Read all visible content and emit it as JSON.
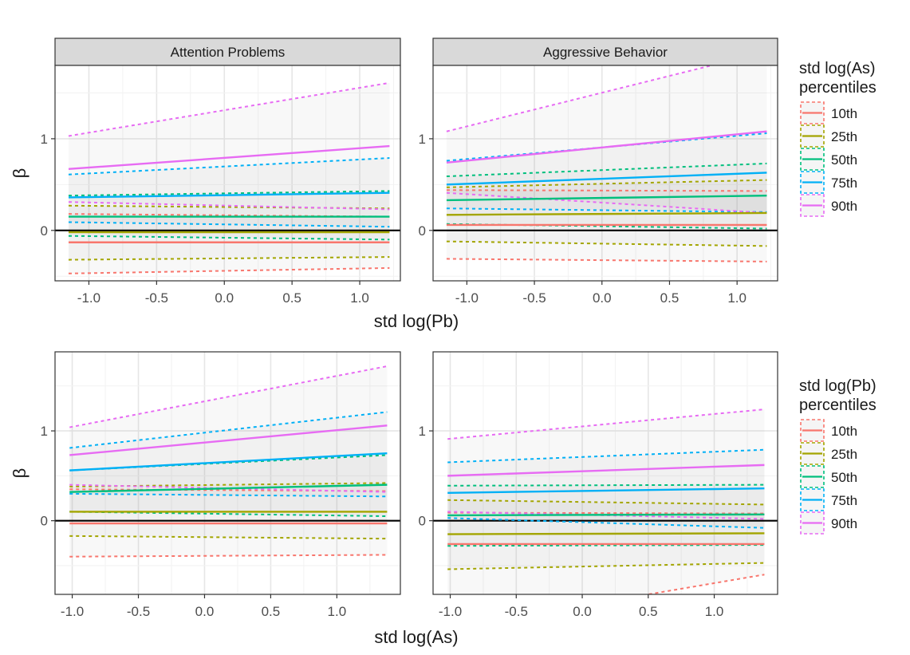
{
  "chart_data": [
    {
      "type": "line",
      "xlabel": "std log(Pb)",
      "ylabel": "β",
      "legend": {
        "title": "std log(As)\npercentiles",
        "position": "right"
      },
      "xlim": [
        -1.25,
        1.3
      ],
      "ylim": [
        -0.55,
        1.8
      ],
      "xticks": [
        -1.0,
        -0.5,
        0.0,
        0.5,
        1.0
      ],
      "xtick_labels": [
        "-1.0",
        "-0.5",
        "0.0",
        "0.5",
        "1.0"
      ],
      "yticks": [
        0,
        1
      ],
      "ytick_labels": [
        "0",
        "1"
      ],
      "grid": true,
      "panels": [
        {
          "strip": "Attention Problems",
          "series": [
            {
              "name": "10th",
              "color": "#F8766D",
              "x": [
                -1.15,
                1.22
              ],
              "est": [
                -0.13,
                -0.13
              ],
              "lo": [
                -0.47,
                -0.41
              ],
              "hi": [
                0.18,
                0.15
              ]
            },
            {
              "name": "25th",
              "color": "#A3A500",
              "x": [
                -1.15,
                1.22
              ],
              "est": [
                -0.02,
                -0.02
              ],
              "lo": [
                -0.32,
                -0.29
              ],
              "hi": [
                0.27,
                0.24
              ]
            },
            {
              "name": "50th",
              "color": "#00BF7D",
              "x": [
                -1.15,
                1.22
              ],
              "est": [
                0.15,
                0.15
              ],
              "lo": [
                -0.06,
                -0.1
              ],
              "hi": [
                0.38,
                0.43
              ]
            },
            {
              "name": "75th",
              "color": "#00B0F6",
              "x": [
                -1.15,
                1.22
              ],
              "est": [
                0.36,
                0.41
              ],
              "lo": [
                0.09,
                0.04
              ],
              "hi": [
                0.61,
                0.79
              ]
            },
            {
              "name": "90th",
              "color": "#E76BF3",
              "x": [
                -1.15,
                1.22
              ],
              "est": [
                0.67,
                0.92
              ],
              "lo": [
                0.31,
                0.23
              ],
              "hi": [
                1.03,
                1.61
              ]
            }
          ]
        },
        {
          "strip": "Aggressive Behavior",
          "series": [
            {
              "name": "10th",
              "color": "#F8766D",
              "x": [
                -1.15,
                1.22
              ],
              "est": [
                0.06,
                0.06
              ],
              "lo": [
                -0.31,
                -0.34
              ],
              "hi": [
                0.44,
                0.43
              ]
            },
            {
              "name": "25th",
              "color": "#A3A500",
              "x": [
                -1.15,
                1.22
              ],
              "est": [
                0.17,
                0.19
              ],
              "lo": [
                -0.12,
                -0.17
              ],
              "hi": [
                0.47,
                0.55
              ]
            },
            {
              "name": "50th",
              "color": "#00BF7D",
              "x": [
                -1.15,
                1.22
              ],
              "est": [
                0.33,
                0.38
              ],
              "lo": [
                0.07,
                0.02
              ],
              "hi": [
                0.59,
                0.73
              ]
            },
            {
              "name": "75th",
              "color": "#00B0F6",
              "x": [
                -1.15,
                1.22
              ],
              "est": [
                0.5,
                0.63
              ],
              "lo": [
                0.24,
                0.2
              ],
              "hi": [
                0.76,
                1.06
              ]
            },
            {
              "name": "90th",
              "color": "#E76BF3",
              "x": [
                -1.15,
                1.22
              ],
              "est": [
                0.74,
                1.08
              ],
              "lo": [
                0.41,
                0.19
              ],
              "hi": [
                1.08,
                1.95
              ]
            }
          ]
        }
      ]
    },
    {
      "type": "line",
      "xlabel": "std log(As)",
      "ylabel": "β",
      "legend": {
        "title": "std log(Pb)\npercentiles",
        "position": "right"
      },
      "xlim": [
        -1.13,
        1.48
      ],
      "ylim": [
        -0.82,
        1.88
      ],
      "xticks": [
        -1.0,
        -0.5,
        0.0,
        0.5,
        1.0
      ],
      "xtick_labels": [
        "-1.0",
        "-0.5",
        "0.0",
        "0.5",
        "1.0"
      ],
      "yticks": [
        0,
        1
      ],
      "ytick_labels": [
        "0",
        "1"
      ],
      "grid": true,
      "panels": [
        {
          "strip": "",
          "series": [
            {
              "name": "10th",
              "color": "#F8766D",
              "x": [
                -1.02,
                1.38
              ],
              "est": [
                -0.03,
                -0.03
              ],
              "lo": [
                -0.4,
                -0.38
              ],
              "hi": [
                0.35,
                0.33
              ]
            },
            {
              "name": "25th",
              "color": "#A3A500",
              "x": [
                -1.02,
                1.38
              ],
              "est": [
                0.1,
                0.1
              ],
              "lo": [
                -0.17,
                -0.2
              ],
              "hi": [
                0.38,
                0.42
              ]
            },
            {
              "name": "50th",
              "color": "#00BF7D",
              "x": [
                -1.02,
                1.38
              ],
              "est": [
                0.32,
                0.4
              ],
              "lo": [
                0.1,
                0.05
              ],
              "hi": [
                0.56,
                0.73
              ]
            },
            {
              "name": "75th",
              "color": "#00B0F6",
              "x": [
                -1.02,
                1.38
              ],
              "est": [
                0.56,
                0.75
              ],
              "lo": [
                0.3,
                0.27
              ],
              "hi": [
                0.81,
                1.21
              ]
            },
            {
              "name": "90th",
              "color": "#E76BF3",
              "x": [
                -1.02,
                1.38
              ],
              "est": [
                0.73,
                1.06
              ],
              "lo": [
                0.4,
                0.32
              ],
              "hi": [
                1.04,
                1.72
              ]
            }
          ]
        },
        {
          "strip": "",
          "series": [
            {
              "name": "10th",
              "color": "#F8766D",
              "x": [
                -1.02,
                1.38
              ],
              "est": [
                -0.26,
                -0.26
              ],
              "lo": [
                -1.2,
                -0.6
              ],
              "hi": [
                0.09,
                0.08
              ]
            },
            {
              "name": "25th",
              "color": "#A3A500",
              "x": [
                -1.02,
                1.38
              ],
              "est": [
                -0.15,
                -0.14
              ],
              "lo": [
                -0.54,
                -0.47
              ],
              "hi": [
                0.23,
                0.18
              ]
            },
            {
              "name": "50th",
              "color": "#00BF7D",
              "x": [
                -1.02,
                1.38
              ],
              "est": [
                0.06,
                0.07
              ],
              "lo": [
                -0.28,
                -0.27
              ],
              "hi": [
                0.39,
                0.4
              ]
            },
            {
              "name": "75th",
              "color": "#00B0F6",
              "x": [
                -1.02,
                1.38
              ],
              "est": [
                0.31,
                0.36
              ],
              "lo": [
                0.03,
                -0.08
              ],
              "hi": [
                0.65,
                0.79
              ]
            },
            {
              "name": "90th",
              "color": "#E76BF3",
              "x": [
                -1.02,
                1.38
              ],
              "est": [
                0.5,
                0.62
              ],
              "lo": [
                0.1,
                0.02
              ],
              "hi": [
                0.91,
                1.24
              ]
            }
          ]
        }
      ]
    }
  ]
}
